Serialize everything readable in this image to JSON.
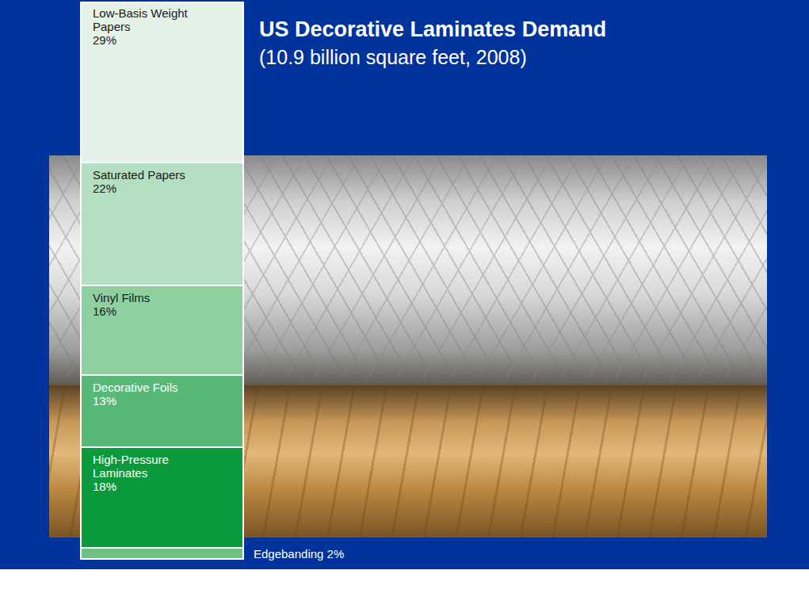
{
  "chart_data": {
    "type": "bar",
    "stacked": true,
    "title": "US Decorative Laminates Demand",
    "subtitle": "(10.9 billion square feet, 2008)",
    "categories": [
      null
    ],
    "ylim": [
      0,
      100
    ],
    "tick_labels": false,
    "data_labels": true,
    "series": [
      {
        "name": "Low-Basis Weight Papers",
        "values": [
          29
        ],
        "value_labels": [
          "29%"
        ],
        "color": "#e4f2e8"
      },
      {
        "name": "Saturated Papers",
        "values": [
          22
        ],
        "value_labels": [
          "22%"
        ],
        "color": "#b5dfc2"
      },
      {
        "name": "Vinyl Films",
        "values": [
          16
        ],
        "value_labels": [
          "16%"
        ],
        "color": "#8fd0a1"
      },
      {
        "name": "Decorative Foils",
        "values": [
          13
        ],
        "value_labels": [
          "13%"
        ],
        "color": "#58b877"
      },
      {
        "name": "High-Pressure Laminates",
        "values": [
          18
        ],
        "value_labels": [
          "18%"
        ],
        "color": "#0b9a3b"
      },
      {
        "name": "Edgebanding",
        "values": [
          2
        ],
        "value_labels": [
          "2%"
        ],
        "color": "#6cc183"
      }
    ]
  }
}
